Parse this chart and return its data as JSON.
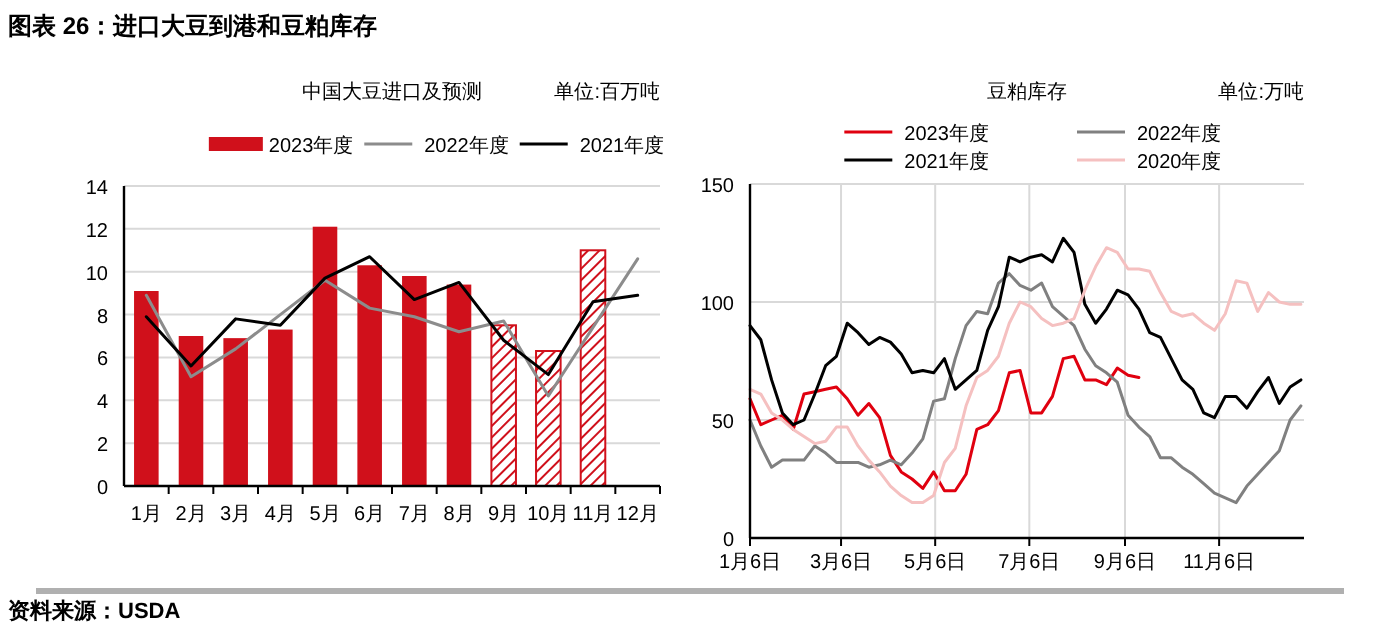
{
  "chart_data": [
    {
      "type": "bar",
      "title": "中国大豆进口及预测",
      "ylabel": "单位:百万吨",
      "annotations": [
        "图表 26：进口大豆到港和豆粕库存",
        "资料来源：USDA"
      ],
      "categories": [
        "1月",
        "2月",
        "3月",
        "4月",
        "5月",
        "6月",
        "7月",
        "8月",
        "9月",
        "10月",
        "11月",
        "12月"
      ],
      "series": [
        {
          "name": "2023年度",
          "color": "#d0101b",
          "values": [
            9.1,
            7.0,
            6.9,
            7.3,
            12.1,
            10.3,
            9.8,
            9.4,
            null,
            null,
            null,
            null
          ]
        },
        {
          "color": "#d0101b",
          "values": [
            null,
            null,
            null,
            null,
            null,
            null,
            null,
            null,
            7.5,
            6.3,
            11.0,
            null
          ]
        },
        {
          "name": "2022年度",
          "type": "line",
          "color": "#8c8c8c",
          "values": [
            8.9,
            5.1,
            6.4,
            8.0,
            9.6,
            8.3,
            7.9,
            7.2,
            7.7,
            4.2,
            7.4,
            10.6
          ]
        },
        {
          "name": "2021年度",
          "type": "line",
          "color": "#000000",
          "values": [
            7.9,
            5.6,
            7.8,
            7.5,
            9.7,
            10.7,
            8.7,
            9.5,
            6.8,
            5.2,
            8.6,
            8.9
          ]
        }
      ],
      "ylim": [
        0,
        14
      ],
      "yticks": [
        0,
        2,
        4,
        6,
        8,
        10,
        12,
        14
      ],
      "grid": "y",
      "legend": "top"
    },
    {
      "type": "line",
      "title": "豆粕库存",
      "ylabel": "单位:万吨",
      "x": [
        "--01-06",
        "--01-13",
        "--01-20",
        "--01-27",
        "--02-03",
        "--02-10",
        "--02-17",
        "--02-24",
        "--03-03",
        "--03-10",
        "--03-17",
        "--03-24",
        "--03-31",
        "--04-07",
        "--04-14",
        "--04-21",
        "--04-28",
        "--05-05",
        "--05-12",
        "--05-19",
        "--05-26",
        "--06-02",
        "--06-09",
        "--06-16",
        "--06-23",
        "--06-30",
        "--07-07",
        "--07-14",
        "--07-21",
        "--07-28",
        "--08-04",
        "--08-11",
        "--08-18",
        "--08-25",
        "--09-01",
        "--09-08",
        "--09-15",
        "--09-22",
        "--09-29",
        "--10-06",
        "--10-13",
        "--10-20",
        "--10-27",
        "--11-03",
        "--11-10",
        "--11-17",
        "--11-24",
        "--12-01",
        "--12-08",
        "--12-15",
        "--12-22",
        "--12-29"
      ],
      "series": [
        {
          "name": "2023年度",
          "color": "#e0000f",
          "values": [
            59,
            48,
            50,
            52,
            46,
            61,
            62,
            63,
            64,
            59,
            52,
            57,
            51,
            35,
            28,
            25,
            21,
            28,
            20,
            20,
            27,
            46,
            48,
            54,
            70,
            71,
            53,
            53,
            60,
            76,
            77,
            67,
            67,
            65,
            72,
            69,
            68,
            null,
            null,
            null,
            null,
            null,
            null,
            null,
            null,
            null,
            null,
            null,
            null,
            null,
            null,
            null
          ]
        },
        {
          "name": "2022年度",
          "color": "#808080",
          "values": [
            50,
            39,
            30,
            33,
            33,
            33,
            39,
            36,
            32,
            32,
            32,
            30,
            31,
            33,
            31,
            36,
            42,
            58,
            59,
            76,
            90,
            96,
            95,
            108,
            112,
            107,
            105,
            108,
            98,
            94,
            90,
            80,
            73,
            70,
            66,
            52,
            47,
            43,
            34,
            34,
            30,
            27,
            23,
            19,
            17,
            15,
            22,
            27,
            32,
            37,
            50,
            56
          ]
        },
        {
          "name": "2021年度",
          "color": "#000000",
          "values": [
            90,
            84,
            67,
            53,
            48,
            50,
            61,
            73,
            77,
            91,
            87,
            82,
            85,
            83,
            78,
            70,
            71,
            70,
            76,
            63,
            67,
            71,
            88,
            98,
            119,
            117,
            119,
            120,
            117,
            127,
            121,
            99,
            91,
            97,
            105,
            103,
            97,
            87,
            85,
            76,
            67,
            63,
            53,
            51,
            60,
            60,
            55,
            62,
            68,
            57,
            64,
            67
          ]
        },
        {
          "name": "2020年度",
          "color": "#f5c0c0",
          "values": [
            63,
            61,
            53,
            50,
            46,
            43,
            40,
            41,
            47,
            47,
            39,
            33,
            28,
            22,
            18,
            15,
            15,
            18,
            32,
            38,
            56,
            68,
            71,
            77,
            91,
            100,
            98,
            93,
            90,
            91,
            93,
            105,
            115,
            123,
            121,
            114,
            114,
            113,
            104,
            96,
            94,
            95,
            91,
            88,
            95,
            109,
            108,
            96,
            104,
            100,
            99,
            99
          ]
        }
      ],
      "xlim": [
        "--01-06",
        "--12-31"
      ],
      "xticks": [
        {
          "value": "--01-06",
          "label": "1月6日"
        },
        {
          "value": "--03-06",
          "label": "3月6日"
        },
        {
          "value": "--05-06",
          "label": "5月6日"
        },
        {
          "value": "--07-06",
          "label": "7月6日"
        },
        {
          "value": "--09-06",
          "label": "9月6日"
        },
        {
          "value": "--11-06",
          "label": "11月6日"
        }
      ],
      "ylim": [
        0,
        150
      ],
      "yticks": [
        0,
        50,
        100,
        150
      ],
      "grid": true,
      "legend": "top"
    }
  ]
}
